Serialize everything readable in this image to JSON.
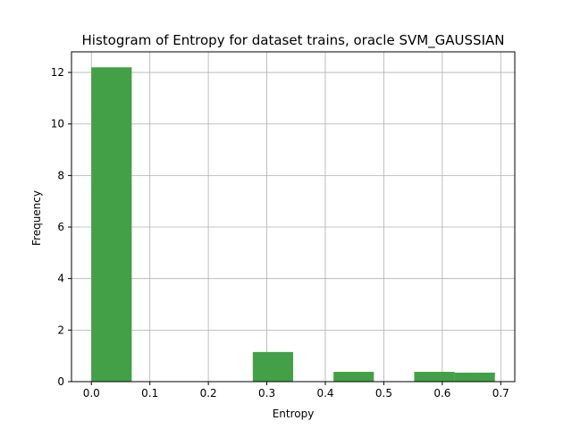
{
  "chart_data": {
    "type": "bar",
    "title": "Histogram of Entropy for dataset trains, oracle SVM_GAUSSIAN",
    "xlabel": "Entropy",
    "ylabel": "Frequency",
    "xlim": [
      -0.034,
      0.724
    ],
    "ylim": [
      0,
      12.8
    ],
    "grid": true,
    "bar_color": "#43a047",
    "bins": [
      {
        "start": 0.0,
        "end": 0.069,
        "value": 12.2
      },
      {
        "start": 0.069,
        "end": 0.138,
        "value": 0
      },
      {
        "start": 0.138,
        "end": 0.207,
        "value": 0
      },
      {
        "start": 0.207,
        "end": 0.276,
        "value": 0
      },
      {
        "start": 0.276,
        "end": 0.345,
        "value": 1.15
      },
      {
        "start": 0.345,
        "end": 0.414,
        "value": 0
      },
      {
        "start": 0.414,
        "end": 0.483,
        "value": 0.38
      },
      {
        "start": 0.483,
        "end": 0.552,
        "value": 0
      },
      {
        "start": 0.552,
        "end": 0.621,
        "value": 0.38
      },
      {
        "start": 0.621,
        "end": 0.69,
        "value": 0.35
      }
    ],
    "xticks": [
      0.0,
      0.1,
      0.2,
      0.3,
      0.4,
      0.5,
      0.6,
      0.7
    ],
    "xtick_labels": [
      "0.0",
      "0.1",
      "0.2",
      "0.3",
      "0.4",
      "0.5",
      "0.6",
      "0.7"
    ],
    "yticks": [
      0,
      2,
      4,
      6,
      8,
      10,
      12
    ],
    "ytick_labels": [
      "0",
      "2",
      "4",
      "6",
      "8",
      "10",
      "12"
    ]
  }
}
